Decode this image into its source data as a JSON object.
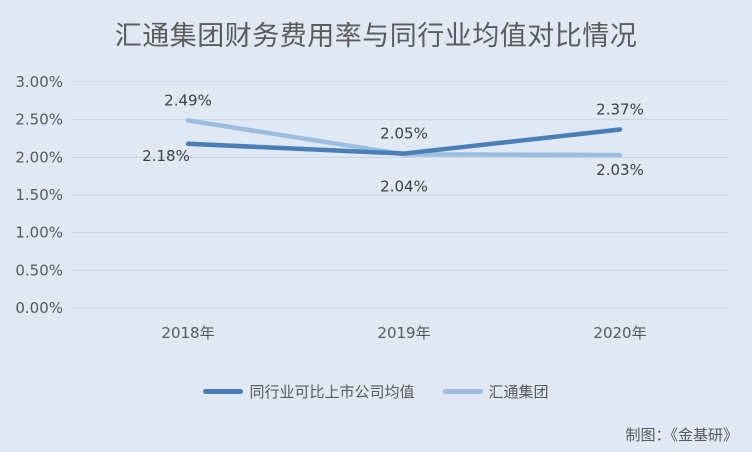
{
  "title": "汇通集团财务费用率与同行业均值对比情况",
  "source": "制图：《金基研》",
  "colors": {
    "background": "#dfe8f3",
    "industry": "#4a7fb5",
    "company": "#9bbde0",
    "grid": "#c9d3de"
  },
  "chart_data": {
    "type": "line",
    "title": "汇通集团财务费用率与同行业均值对比情况",
    "categories": [
      "2018年",
      "2019年",
      "2020年"
    ],
    "yticks": [
      "0.00%",
      "0.50%",
      "1.00%",
      "1.50%",
      "2.00%",
      "2.50%",
      "3.00%"
    ],
    "ylim": [
      0,
      3
    ],
    "grid": true,
    "legend_position": "bottom",
    "series": [
      {
        "name": "同行业可比上市公司均值",
        "values": [
          2.18,
          2.05,
          2.37
        ],
        "labels": [
          "2.18%",
          "2.05%",
          "2.37%"
        ]
      },
      {
        "name": "汇通集团",
        "values": [
          2.49,
          2.04,
          2.03
        ],
        "labels": [
          "2.49%",
          "2.04%",
          "2.03%"
        ]
      }
    ]
  }
}
